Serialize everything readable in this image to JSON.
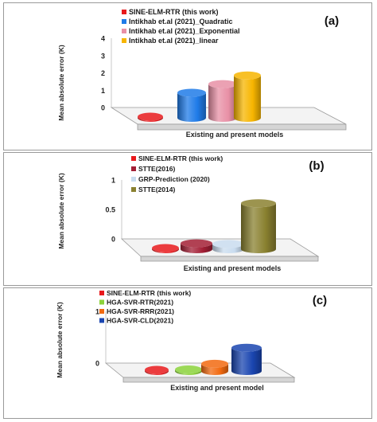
{
  "chart_data": [
    {
      "type": "bar",
      "panel_label": "(a)",
      "ylabel": "Mean absolute error (K)",
      "xlabel": "Existing and present models",
      "ylim": [
        0,
        4
      ],
      "yticks": [
        "0",
        "1",
        "2",
        "3",
        "4"
      ],
      "legend_position": "top-left",
      "series": [
        {
          "name": "SINE-ELM-RTR (this work)",
          "value": 0.05,
          "color": "#e8191c"
        },
        {
          "name": "Intikhab et.al (2021)_Quadratic",
          "value": 1.45,
          "color": "#1f7be8"
        },
        {
          "name": "Intikhab et.al (2021)_Exponential",
          "value": 1.95,
          "color": "#e890a6"
        },
        {
          "name": "Intikhab et.al (2021)_linear",
          "value": 2.45,
          "color": "#f7b500"
        }
      ]
    },
    {
      "type": "bar",
      "panel_label": "(b)",
      "ylabel": "Mean absolute error (K)",
      "xlabel": "Existing and present models",
      "ylim": [
        0,
        1
      ],
      "yticks": [
        "0",
        "0.5",
        "1"
      ],
      "legend_position": "top-left",
      "series": [
        {
          "name": "SINE-ELM-RTR (this work)",
          "value": 0.02,
          "color": "#e8191c"
        },
        {
          "name": "STTE(2016)",
          "value": 0.1,
          "color": "#a31f35"
        },
        {
          "name": "GRP-Prediction (2020)",
          "value": 0.09,
          "color": "#c9dcef"
        },
        {
          "name": "STTE(2014)",
          "value": 0.78,
          "color": "#8a8130"
        }
      ]
    },
    {
      "type": "bar",
      "panel_label": "(c)",
      "ylabel": "Mean absolute error (K)",
      "xlabel": "Existing and present model",
      "ylim": [
        0,
        1
      ],
      "yticks": [
        "0",
        "1"
      ],
      "legend_position": "top-left",
      "series": [
        {
          "name": "SINE-ELM-RTR (this work)",
          "value": 0.02,
          "color": "#e8191c"
        },
        {
          "name": "HGA-SVR-RTR(2021)",
          "value": 0.03,
          "color": "#8bd23a"
        },
        {
          "name": "HGA-SVR-RRR(2021)",
          "value": 0.14,
          "color": "#f26a10"
        },
        {
          "name": "HGA-SVR-CLD(2021)",
          "value": 0.45,
          "color": "#1a45b0"
        }
      ]
    }
  ]
}
